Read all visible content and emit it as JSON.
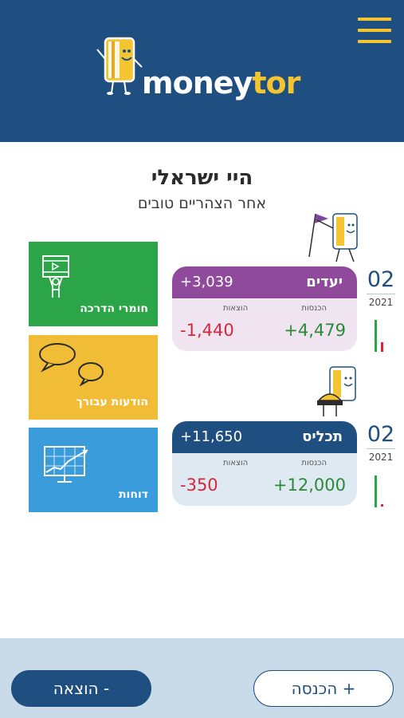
{
  "header": {
    "logo": {
      "part1": "money",
      "part2": "tor"
    },
    "colors": {
      "background": "#1f4f80",
      "accent": "#f4c531"
    },
    "menu_icon": "hamburger-menu-icon"
  },
  "greeting": {
    "title": "היי ישראלי",
    "subtitle": "אחר הצהריים טובים"
  },
  "tiles": [
    {
      "label": "חומרי הדרכה",
      "icon": "training-video-icon",
      "color": "#2ba548"
    },
    {
      "label": "הודעות עבורך",
      "icon": "chat-bubbles-icon",
      "color": "#f1bd36"
    },
    {
      "label": "דוחות",
      "icon": "report-chart-icon",
      "color": "#3b9cdc"
    }
  ],
  "cards": [
    {
      "name": "יעדים",
      "total": "+3,039",
      "income_label": "הכנסות",
      "expense_label": "הוצאות",
      "income": "+4,479",
      "expense": "-1,440",
      "month": "02",
      "year": "2021",
      "color": "#8f4a9c"
    },
    {
      "name": "תכליס",
      "total": "+11,650",
      "income_label": "הכנסות",
      "expense_label": "הוצאות",
      "income": "+12,000",
      "expense": "-350",
      "month": "02",
      "year": "2021",
      "color": "#1f4f80"
    }
  ],
  "footer": {
    "expense_button": "הוצאה -",
    "income_button": "הכנסה +"
  }
}
